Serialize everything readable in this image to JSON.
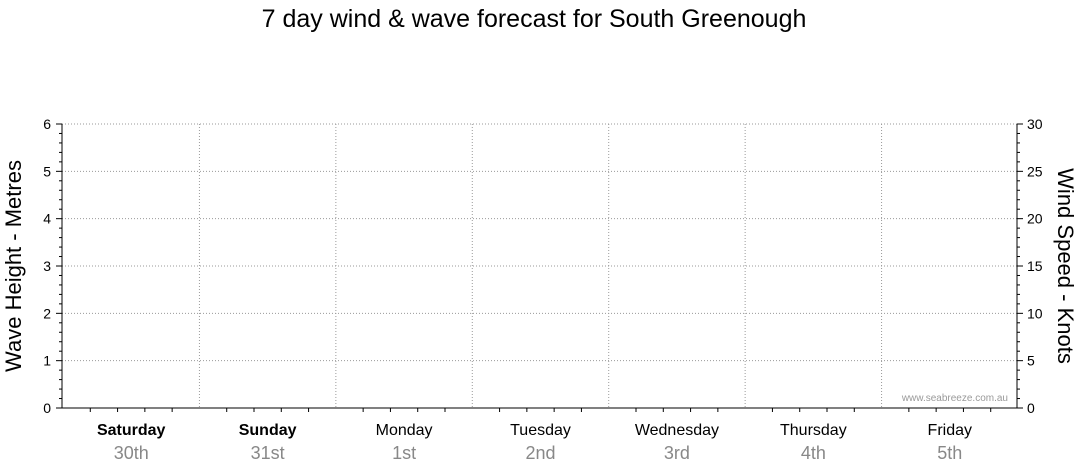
{
  "chart_data": {
    "type": "line",
    "title": "7 day wind & wave forecast for South Greenough",
    "y_left": {
      "label": "Wave Height - Metres",
      "range": [
        0,
        6
      ],
      "ticks": [
        0,
        1,
        2,
        3,
        4,
        5,
        6
      ],
      "unit": "Metres"
    },
    "y_right": {
      "label": "Wind Speed - Knots",
      "range": [
        0,
        30
      ],
      "ticks": [
        0,
        5,
        10,
        15,
        20,
        25,
        30
      ],
      "unit": "Knots"
    },
    "days": [
      {
        "name": "Saturday",
        "date": "30th",
        "weekend": true
      },
      {
        "name": "Sunday",
        "date": "31st",
        "weekend": true
      },
      {
        "name": "Monday",
        "date": "1st",
        "weekend": false
      },
      {
        "name": "Tuesday",
        "date": "2nd",
        "weekend": false
      },
      {
        "name": "Wednesday",
        "date": "3rd",
        "weekend": false
      },
      {
        "name": "Thursday",
        "date": "4th",
        "weekend": false
      },
      {
        "name": "Friday",
        "date": "5th",
        "weekend": false
      }
    ],
    "series": [],
    "grid": true,
    "watermark": "www.seabreeze.com.au"
  }
}
